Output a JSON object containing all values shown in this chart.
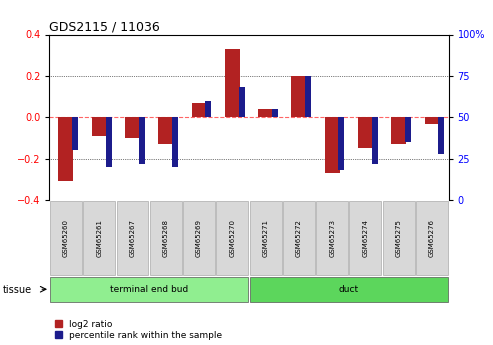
{
  "title": "GDS2115 / 11036",
  "categories": [
    "GSM65260",
    "GSM65261",
    "GSM65267",
    "GSM65268",
    "GSM65269",
    "GSM65270",
    "GSM65271",
    "GSM65272",
    "GSM65273",
    "GSM65274",
    "GSM65275",
    "GSM65276"
  ],
  "log2_ratio": [
    -0.31,
    -0.09,
    -0.1,
    -0.13,
    0.07,
    0.33,
    0.04,
    0.2,
    -0.27,
    -0.15,
    -0.13,
    -0.03
  ],
  "percentile_rank": [
    30,
    20,
    22,
    20,
    60,
    68,
    55,
    75,
    18,
    22,
    35,
    28
  ],
  "red_color": "#B22222",
  "blue_color": "#1C1C8C",
  "ylim_left": [
    -0.4,
    0.4
  ],
  "ylim_right": [
    0,
    100
  ],
  "y_ticks_left": [
    -0.4,
    -0.2,
    0.0,
    0.2,
    0.4
  ],
  "y_ticks_right": [
    0,
    25,
    50,
    75,
    100
  ],
  "groups": [
    {
      "label": "terminal end bud",
      "indices": [
        0,
        1,
        2,
        3,
        4,
        5
      ],
      "color": "#90EE90"
    },
    {
      "label": "duct",
      "indices": [
        6,
        7,
        8,
        9,
        10,
        11
      ],
      "color": "#5CD65C"
    }
  ],
  "tissue_label": "tissue",
  "legend_red": "log2 ratio",
  "legend_blue": "percentile rank within the sample",
  "dotted_line_color": "#000000",
  "zero_line_color": "#FF6666",
  "background_color": "#FFFFFF"
}
